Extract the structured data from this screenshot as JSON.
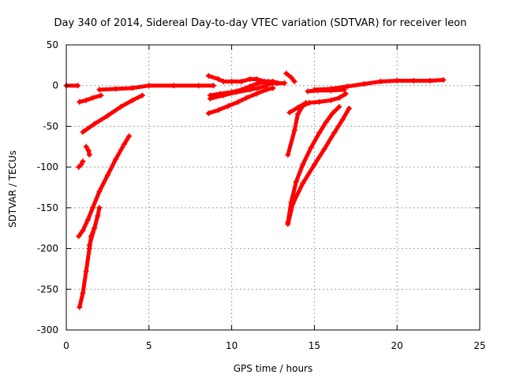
{
  "chart_data": {
    "type": "scatter",
    "title": "Day 340 of 2014, Sidereal Day-to-day VTEC variation (SDTVAR) for receiver leon",
    "xlabel": "GPS time / hours",
    "ylabel": "SDTVAR / TECUs",
    "xlim": [
      0,
      25
    ],
    "ylim": [
      -300,
      50
    ],
    "xticks": [
      0,
      5,
      10,
      15,
      20,
      25
    ],
    "xtick_labels": [
      "0",
      "5",
      "10",
      "15",
      "20",
      "25"
    ],
    "yticks": [
      50,
      0,
      -50,
      -100,
      -150,
      -200,
      -250,
      -300
    ],
    "ytick_labels": [
      "50",
      "0",
      "-50",
      "-100",
      "-150",
      "-200",
      "-250",
      "-300"
    ],
    "grid": true,
    "legend": "none",
    "series_color": "#ff0000",
    "marker": "plus",
    "series": [
      {
        "points": [
          [
            0.0,
            0
          ],
          [
            0.7,
            0
          ]
        ]
      },
      {
        "points": [
          [
            0.8,
            -20
          ],
          [
            1.2,
            -18
          ],
          [
            1.6,
            -15
          ],
          [
            2.1,
            -12
          ]
        ]
      },
      {
        "points": [
          [
            1.0,
            -57
          ],
          [
            1.7,
            -47
          ],
          [
            2.5,
            -37
          ],
          [
            3.3,
            -26
          ],
          [
            4.0,
            -18
          ],
          [
            4.6,
            -12
          ]
        ]
      },
      {
        "points": [
          [
            0.75,
            -100
          ],
          [
            0.9,
            -97
          ],
          [
            1.0,
            -93
          ]
        ]
      },
      {
        "points": [
          [
            1.2,
            -75
          ],
          [
            1.35,
            -80
          ],
          [
            1.4,
            -85
          ]
        ]
      },
      {
        "points": [
          [
            0.75,
            -185
          ],
          [
            1.0,
            -178
          ],
          [
            1.3,
            -165
          ],
          [
            1.6,
            -150
          ],
          [
            2.0,
            -130
          ],
          [
            2.5,
            -110
          ],
          [
            3.0,
            -90
          ],
          [
            3.5,
            -72
          ],
          [
            3.8,
            -62
          ]
        ]
      },
      {
        "points": [
          [
            0.8,
            -272
          ],
          [
            1.0,
            -255
          ],
          [
            1.2,
            -228
          ],
          [
            1.4,
            -200
          ],
          [
            1.5,
            -185
          ],
          [
            1.7,
            -175
          ]
        ]
      },
      {
        "points": [
          [
            1.4,
            -196
          ],
          [
            1.7,
            -175
          ],
          [
            1.9,
            -160
          ],
          [
            2.0,
            -150
          ]
        ]
      },
      {
        "points": [
          [
            2.0,
            -5
          ],
          [
            3.0,
            -4
          ],
          [
            4.0,
            -3
          ],
          [
            5.0,
            0
          ],
          [
            6.5,
            0
          ],
          [
            8.0,
            0
          ],
          [
            8.9,
            0
          ]
        ]
      },
      {
        "points": [
          [
            8.6,
            12
          ],
          [
            9.2,
            8
          ],
          [
            9.5,
            5
          ],
          [
            10.0,
            5
          ],
          [
            10.6,
            5
          ],
          [
            11.1,
            8
          ],
          [
            11.5,
            8
          ],
          [
            12.0,
            5
          ],
          [
            12.5,
            5
          ],
          [
            12.8,
            3
          ]
        ]
      },
      {
        "points": [
          [
            8.7,
            -12
          ],
          [
            9.3,
            -10
          ],
          [
            10.0,
            -8
          ],
          [
            10.6,
            -5
          ],
          [
            11.1,
            -1
          ],
          [
            11.6,
            3
          ],
          [
            12.2,
            5
          ]
        ]
      },
      {
        "points": [
          [
            8.7,
            -16
          ],
          [
            9.5,
            -12
          ],
          [
            10.3,
            -8
          ],
          [
            11.1,
            -5
          ],
          [
            11.6,
            -3
          ],
          [
            12.1,
            0
          ],
          [
            12.4,
            3
          ]
        ]
      },
      {
        "points": [
          [
            8.6,
            -34
          ],
          [
            9.2,
            -30
          ],
          [
            9.8,
            -25
          ],
          [
            10.4,
            -20
          ],
          [
            10.9,
            -15
          ],
          [
            11.5,
            -10
          ],
          [
            12.1,
            -5
          ],
          [
            12.5,
            -3
          ]
        ]
      },
      {
        "points": [
          [
            12.0,
            3
          ],
          [
            12.7,
            3
          ],
          [
            13.2,
            3
          ]
        ]
      },
      {
        "points": [
          [
            13.3,
            15
          ],
          [
            13.6,
            10
          ],
          [
            13.8,
            5
          ]
        ]
      },
      {
        "points": [
          [
            13.4,
            -85
          ],
          [
            13.8,
            -55
          ],
          [
            14.0,
            -35
          ],
          [
            14.3,
            -25
          ],
          [
            14.7,
            -21
          ],
          [
            15.3,
            -20
          ],
          [
            16.0,
            -18
          ],
          [
            16.5,
            -15
          ],
          [
            16.9,
            -10
          ]
        ]
      },
      {
        "points": [
          [
            13.5,
            -33
          ],
          [
            14.0,
            -27
          ],
          [
            14.5,
            -21
          ]
        ]
      },
      {
        "points": [
          [
            14.6,
            -7
          ],
          [
            15.2,
            -6
          ],
          [
            16.0,
            -6
          ],
          [
            16.8,
            -5
          ]
        ]
      },
      {
        "points": [
          [
            13.4,
            -168
          ],
          [
            13.6,
            -143
          ],
          [
            13.9,
            -118
          ],
          [
            14.3,
            -97
          ],
          [
            14.8,
            -76
          ],
          [
            15.3,
            -58
          ],
          [
            15.7,
            -45
          ],
          [
            16.1,
            -34
          ],
          [
            16.5,
            -26
          ]
        ]
      },
      {
        "points": [
          [
            13.4,
            -170
          ],
          [
            13.7,
            -145
          ],
          [
            14.3,
            -120
          ],
          [
            15.0,
            -97
          ],
          [
            15.6,
            -78
          ],
          [
            16.2,
            -58
          ],
          [
            16.7,
            -42
          ],
          [
            17.1,
            -28
          ]
        ]
      },
      {
        "points": [
          [
            15.0,
            -5
          ],
          [
            16.0,
            -4
          ],
          [
            17.0,
            -1
          ],
          [
            18.0,
            2
          ],
          [
            19.0,
            5
          ],
          [
            20.0,
            6
          ],
          [
            21.0,
            6
          ],
          [
            22.0,
            6
          ],
          [
            22.8,
            7
          ]
        ]
      }
    ]
  }
}
